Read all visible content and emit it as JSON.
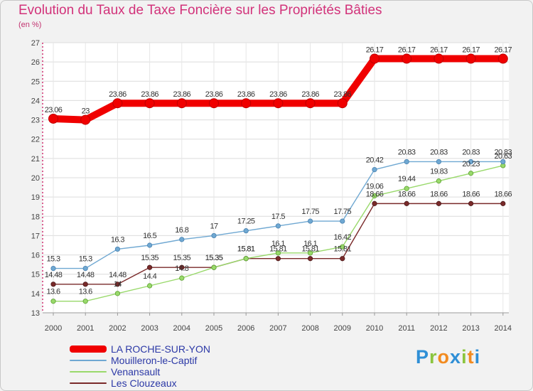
{
  "title": "Evolution du Taux de Taxe Foncière sur les Propriétés Bâties",
  "subtitle": "(en %)",
  "brand": {
    "letters": [
      {
        "char": "P",
        "color": "#2f8fd6"
      },
      {
        "char": "r",
        "color": "#8bc53f"
      },
      {
        "char": "o",
        "color": "#f28b20"
      },
      {
        "char": "x",
        "color": "#2f8fd6"
      },
      {
        "char": "i",
        "color": "#8bc53f"
      },
      {
        "char": "t",
        "color": "#f28b20"
      },
      {
        "char": "i",
        "color": "#2f8fd6"
      }
    ]
  },
  "chart_data": {
    "type": "line",
    "title": "Evolution du Taux de Taxe Foncière sur les Propriétés Bâties",
    "ylabel": "(en %)",
    "xlabel": "",
    "ylim": [
      13,
      27
    ],
    "yticks": [
      "13",
      "14",
      "15",
      "16",
      "17",
      "18",
      "19",
      "20",
      "21",
      "22",
      "23",
      "24",
      "25",
      "26",
      "27"
    ],
    "x": [
      "2000",
      "2001",
      "2002",
      "2003",
      "2004",
      "2005",
      "2006",
      "2007",
      "2008",
      "2009",
      "2010",
      "2011",
      "2012",
      "2013",
      "2014"
    ],
    "grid": true,
    "legend_position": "bottom-left",
    "series": [
      {
        "name": "LA ROCHE-SUR-YON",
        "color": "#f00000",
        "values": [
          23.06,
          23,
          23.86,
          23.86,
          23.86,
          23.86,
          23.86,
          23.86,
          23.86,
          23.86,
          26.17,
          26.17,
          26.17,
          26.17,
          26.17
        ],
        "labels": [
          "23.06",
          "23",
          "23.86",
          "23.86",
          "23.86",
          "23.86",
          "23.86",
          "23.86",
          "23.86",
          "23.86",
          "26.17",
          "26.17",
          "26.17",
          "26.17",
          "26.17"
        ]
      },
      {
        "name": "Mouilleron-le-Captif",
        "color": "#6fa8d2",
        "values": [
          15.3,
          15.3,
          16.3,
          16.5,
          16.8,
          17,
          17.25,
          17.5,
          17.75,
          17.75,
          20.42,
          20.83,
          20.83,
          20.83,
          20.83
        ],
        "labels": [
          "15.3",
          "15.3",
          "16.3",
          "16.5",
          "16.8",
          "17",
          "17.25",
          "17.5",
          "17.75",
          "17.75",
          "20.42",
          "20.83",
          "20.83",
          "20.83",
          "20.83"
        ]
      },
      {
        "name": "Venansault",
        "color": "#99d96b",
        "values": [
          13.6,
          13.6,
          14,
          14.4,
          14.8,
          15.35,
          15.81,
          16.1,
          16.1,
          16.42,
          19.06,
          19.44,
          19.83,
          20.23,
          20.63
        ],
        "labels": [
          "13.6",
          "13.6",
          "14",
          "14.4",
          "14.8",
          "15.35",
          "15.81",
          "16.1",
          "16.1",
          "16.42",
          "19.06",
          "19.44",
          "19.83",
          "20.23",
          "20.63"
        ]
      },
      {
        "name": "Les Clouzeaux",
        "color": "#7a2a2a",
        "values": [
          14.48,
          14.48,
          14.48,
          15.35,
          15.35,
          15.35,
          15.81,
          15.81,
          15.81,
          15.81,
          18.66,
          18.66,
          18.66,
          18.66,
          18.66
        ],
        "labels": [
          "14.48",
          "14.48",
          "14.48",
          "15.35",
          "15.35",
          "15.35",
          "15.81",
          "15.81",
          "15.81",
          "15.81",
          "18.66",
          "18.66",
          "18.66",
          "18.66",
          "18.66"
        ]
      }
    ]
  }
}
